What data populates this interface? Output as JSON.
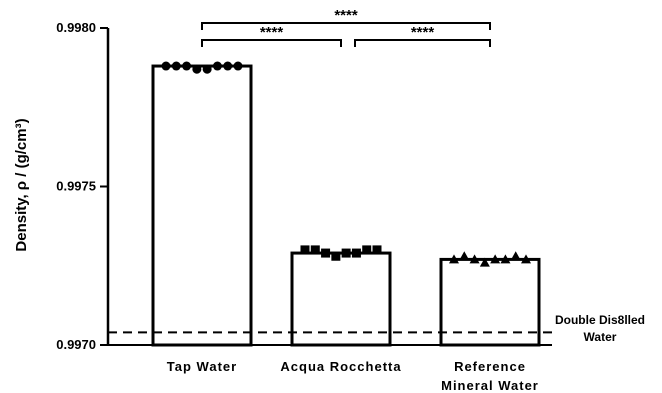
{
  "chart_data": {
    "type": "bar",
    "ylabel": "Density, ρ / (g/cm³)",
    "ylim": [
      0.997,
      0.998
    ],
    "yticks": [
      "0.9970",
      "0.9975",
      "0.9980"
    ],
    "categories": [
      [
        "Tap Water"
      ],
      [
        "Acqua Rocchetta"
      ],
      [
        "Reference",
        "Mineral Water"
      ]
    ],
    "values": [
      0.99788,
      0.99729,
      0.99727
    ],
    "points": [
      [
        0.99788,
        0.99788,
        0.99788,
        0.99787,
        0.99787,
        0.99788,
        0.99788,
        0.99788
      ],
      [
        0.9973,
        0.9973,
        0.99729,
        0.99728,
        0.99729,
        0.99729,
        0.9973,
        0.9973
      ],
      [
        0.99727,
        0.99728,
        0.99727,
        0.99726,
        0.99727,
        0.99727,
        0.99728,
        0.99727
      ]
    ],
    "markers": [
      "circle",
      "square",
      "triangle"
    ],
    "reference_line": {
      "value": 0.99704,
      "label": [
        "Double Dis8lled",
        "Water"
      ],
      "style": "dashed"
    },
    "significance": [
      {
        "from": 0,
        "to": 1,
        "label": "****"
      },
      {
        "from": 1,
        "to": 2,
        "label": "****"
      },
      {
        "from": 0,
        "to": 2,
        "label": "****"
      }
    ]
  }
}
